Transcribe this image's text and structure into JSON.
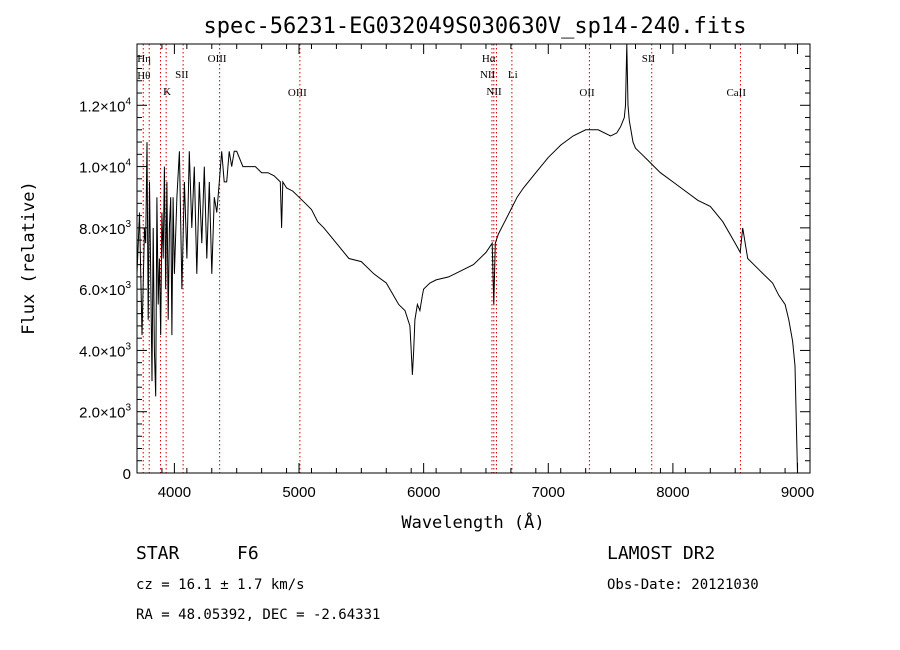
{
  "chart_data": {
    "type": "line",
    "title": "spec-56231-EG032049S030630V_sp14-240.fits",
    "xlabel": "Wavelength (Å)",
    "ylabel": "Flux (relative)",
    "xlim": [
      3700,
      9100
    ],
    "ylim": [
      0,
      14000
    ],
    "x_ticks": [
      4000,
      5000,
      6000,
      7000,
      8000,
      9000
    ],
    "y_ticks": [
      {
        "value": 0,
        "mant": "0",
        "exp": ""
      },
      {
        "value": 2000,
        "mant": "2.0×10",
        "exp": "3"
      },
      {
        "value": 4000,
        "mant": "4.0×10",
        "exp": "3"
      },
      {
        "value": 6000,
        "mant": "6.0×10",
        "exp": "3"
      },
      {
        "value": 8000,
        "mant": "8.0×10",
        "exp": "3"
      },
      {
        "value": 10000,
        "mant": "1.0×10",
        "exp": "4"
      },
      {
        "value": 12000,
        "mant": "1.2×10",
        "exp": "4"
      }
    ],
    "series": [
      {
        "x": [
          3700,
          3720,
          3740,
          3760,
          3770,
          3780,
          3790,
          3800,
          3810,
          3820,
          3830,
          3840,
          3850,
          3860,
          3870,
          3880,
          3890,
          3900,
          3910,
          3920,
          3930,
          3940,
          3950,
          3960,
          3970,
          3980,
          3990,
          4000,
          4020,
          4040,
          4060,
          4080,
          4100,
          4120,
          4140,
          4160,
          4180,
          4200,
          4220,
          4240,
          4260,
          4280,
          4300,
          4320,
          4340,
          4360,
          4380,
          4400,
          4420,
          4440,
          4460,
          4480,
          4500,
          4550,
          4600,
          4650,
          4700,
          4750,
          4800,
          4850,
          4860,
          4870,
          4900,
          4950,
          5000,
          5050,
          5100,
          5150,
          5200,
          5300,
          5400,
          5500,
          5600,
          5700,
          5800,
          5850,
          5890,
          5900,
          5910,
          5920,
          5930,
          5950,
          5970,
          5990,
          6000,
          6050,
          6100,
          6200,
          6300,
          6400,
          6500,
          6550,
          6563,
          6575,
          6600,
          6650,
          6700,
          6750,
          6800,
          6900,
          7000,
          7100,
          7200,
          7300,
          7400,
          7500,
          7550,
          7580,
          7600,
          7610,
          7620,
          7630,
          7640,
          7650,
          7680,
          7700,
          7750,
          7800,
          7850,
          7900,
          8000,
          8100,
          8200,
          8300,
          8400,
          8500,
          8540,
          8560,
          8600,
          8700,
          8800,
          8850,
          8900,
          8930,
          8960,
          8980,
          9000
        ],
        "y": [
          6500,
          8500,
          4500,
          8000,
          7500,
          10800,
          5000,
          9500,
          6500,
          3000,
          8000,
          4000,
          2500,
          9000,
          5500,
          7000,
          4500,
          8500,
          7000,
          10000,
          6000,
          9500,
          5000,
          8000,
          9000,
          4500,
          9000,
          6500,
          9000,
          10500,
          6000,
          9500,
          7000,
          10500,
          8000,
          10000,
          6500,
          9500,
          7500,
          10000,
          7000,
          9500,
          6500,
          9000,
          8500,
          9500,
          10500,
          9500,
          9500,
          10500,
          10000,
          10500,
          10500,
          10000,
          10000,
          10000,
          9800,
          9800,
          9700,
          9500,
          8000,
          9500,
          9300,
          9200,
          9000,
          8800,
          8600,
          8200,
          8000,
          7500,
          7000,
          6900,
          6500,
          6200,
          5500,
          5300,
          4800,
          4000,
          3200,
          4000,
          5000,
          5500,
          5300,
          5800,
          6000,
          6200,
          6300,
          6400,
          6600,
          6800,
          7200,
          7500,
          5500,
          7500,
          7800,
          8200,
          8600,
          9000,
          9300,
          9800,
          10300,
          10700,
          11000,
          11200,
          11200,
          11000,
          11100,
          11300,
          11500,
          11600,
          12000,
          14000,
          12000,
          11500,
          10800,
          10600,
          10400,
          10200,
          10000,
          9800,
          9500,
          9200,
          8900,
          8700,
          8200,
          7500,
          7200,
          8000,
          7000,
          6600,
          6200,
          5800,
          5500,
          5000,
          4300,
          3500,
          0
        ]
      }
    ],
    "annotation_lines": [
      {
        "wl": 3750,
        "labels": [
          "Hη",
          "Hθ"
        ]
      },
      {
        "wl": 3798,
        "labels": []
      },
      {
        "wl": 3889,
        "labels": []
      },
      {
        "wl": 3934,
        "labels": [
          "K"
        ]
      },
      {
        "wl": 4070,
        "labels": [
          "SII"
        ]
      },
      {
        "wl": 4363,
        "labels": [
          "OIII"
        ]
      },
      {
        "wl": 5007,
        "labels": [
          "OIII"
        ]
      },
      {
        "wl": 6548,
        "labels": [
          "NII"
        ]
      },
      {
        "wl": 6563,
        "labels": [
          "Hα"
        ]
      },
      {
        "wl": 6584,
        "labels": [
          "NII"
        ]
      },
      {
        "wl": 6708,
        "labels": [
          "Li"
        ]
      },
      {
        "wl": 7330,
        "labels": [
          "OII"
        ]
      },
      {
        "wl": 7830,
        "labels": [
          "SII"
        ]
      },
      {
        "wl": 8542,
        "labels": [
          "CaII"
        ]
      }
    ],
    "grid": false,
    "legend": "none"
  },
  "info": {
    "class_label": "STAR",
    "subclass": "F6",
    "survey": "LAMOST DR2",
    "cz": "cz = 16.1 ± 1.7 km/s",
    "obs_date": "Obs-Date: 20121030",
    "coords": "RA =  48.05392, DEC =  -2.64331"
  },
  "colors": {
    "line": "#000000",
    "marker_lines": "#cc0000"
  }
}
